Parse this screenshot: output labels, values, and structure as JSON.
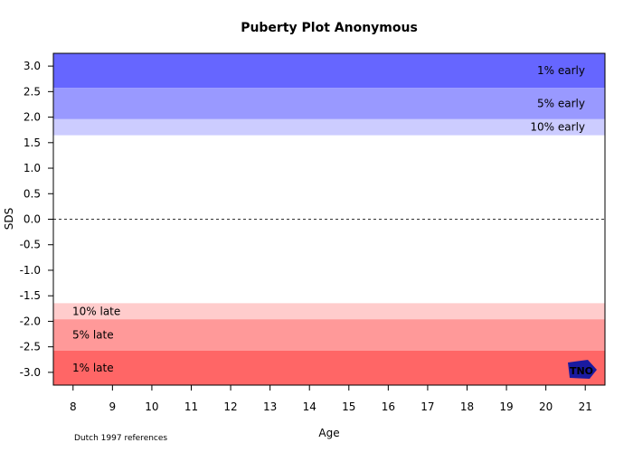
{
  "chart_data": {
    "type": "area",
    "title": "Puberty Plot Anonymous",
    "xlabel": "Age",
    "ylabel": "SDS",
    "xlim": [
      7.5,
      21.5
    ],
    "ylim": [
      -3.25,
      3.25
    ],
    "x_ticks": [
      8,
      9,
      10,
      11,
      12,
      13,
      14,
      15,
      16,
      17,
      18,
      19,
      20,
      21
    ],
    "y_ticks": [
      3.0,
      2.5,
      2.0,
      1.5,
      1.0,
      0.5,
      0.0,
      -0.5,
      -1.0,
      -1.5,
      -2.0,
      -2.5,
      -3.0
    ],
    "y_tick_labels": [
      "3.0",
      "2.5",
      "2.0",
      "1.5",
      "1.0",
      "0.5",
      "0.0",
      "-0.5",
      "-1.0",
      "-1.5",
      "-2.0",
      "-2.5",
      "-3.0"
    ],
    "reference_line": {
      "y": 0,
      "style": "dashed"
    },
    "bands": [
      {
        "label": "1% early",
        "from": 2.576,
        "to": 3.25,
        "color": "#6666ff",
        "label_side": "right"
      },
      {
        "label": "5% early",
        "from": 1.96,
        "to": 2.576,
        "color": "#9999ff",
        "label_side": "right"
      },
      {
        "label": "10% early",
        "from": 1.645,
        "to": 1.96,
        "color": "#ccccff",
        "label_side": "right"
      },
      {
        "label": "10% late",
        "from": -1.96,
        "to": -1.645,
        "color": "#ffcccc",
        "label_side": "left"
      },
      {
        "label": "5% late",
        "from": -2.576,
        "to": -1.96,
        "color": "#ff9999",
        "label_side": "left"
      },
      {
        "label": "1% late",
        "from": -3.25,
        "to": -2.576,
        "color": "#ff6666",
        "label_side": "left"
      }
    ],
    "footnote": "Dutch 1997 references",
    "logo": {
      "name": "tno-logo",
      "text": "TNO",
      "color": "#1a1aa0"
    }
  }
}
